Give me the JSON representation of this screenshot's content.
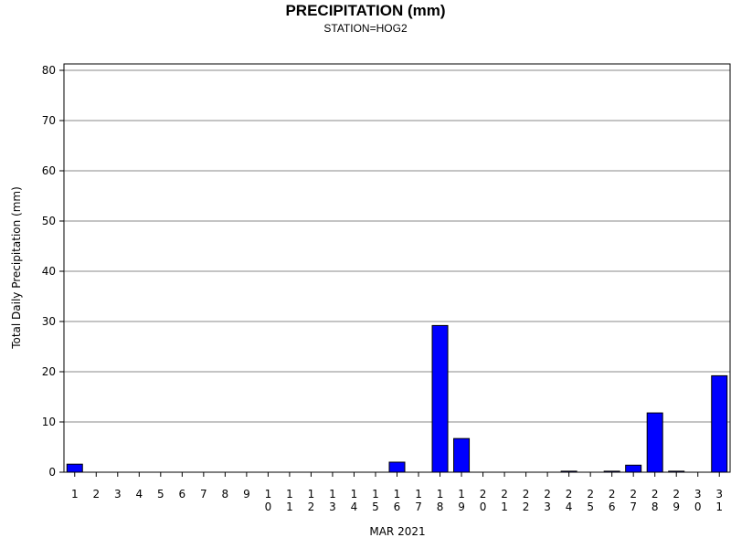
{
  "chart_data": {
    "type": "bar",
    "title": "PRECIPITATION (mm)",
    "subtitle": "STATION=HOG2",
    "xlabel": "MAR 2021",
    "ylabel": "Total Daily Precipitation (mm)",
    "ylim": [
      0,
      80
    ],
    "yticks": [
      "0",
      "10",
      "20",
      "30",
      "40",
      "50",
      "60",
      "70",
      "80"
    ],
    "categories": [
      "1",
      "2",
      "3",
      "4",
      "5",
      "6",
      "7",
      "8",
      "9",
      "10",
      "11",
      "12",
      "13",
      "14",
      "15",
      "16",
      "17",
      "18",
      "19",
      "20",
      "21",
      "22",
      "23",
      "24",
      "25",
      "26",
      "27",
      "28",
      "29",
      "30",
      "31"
    ],
    "values": [
      1.6,
      0,
      0,
      0,
      0,
      0,
      0,
      0,
      0,
      0,
      0,
      0,
      0,
      0,
      0,
      2.0,
      0,
      29.2,
      6.7,
      0,
      0,
      0,
      0,
      0.2,
      0,
      0.2,
      1.4,
      11.8,
      0.2,
      0,
      19.2
    ],
    "grid": true,
    "bar_color": "#0000FF"
  }
}
